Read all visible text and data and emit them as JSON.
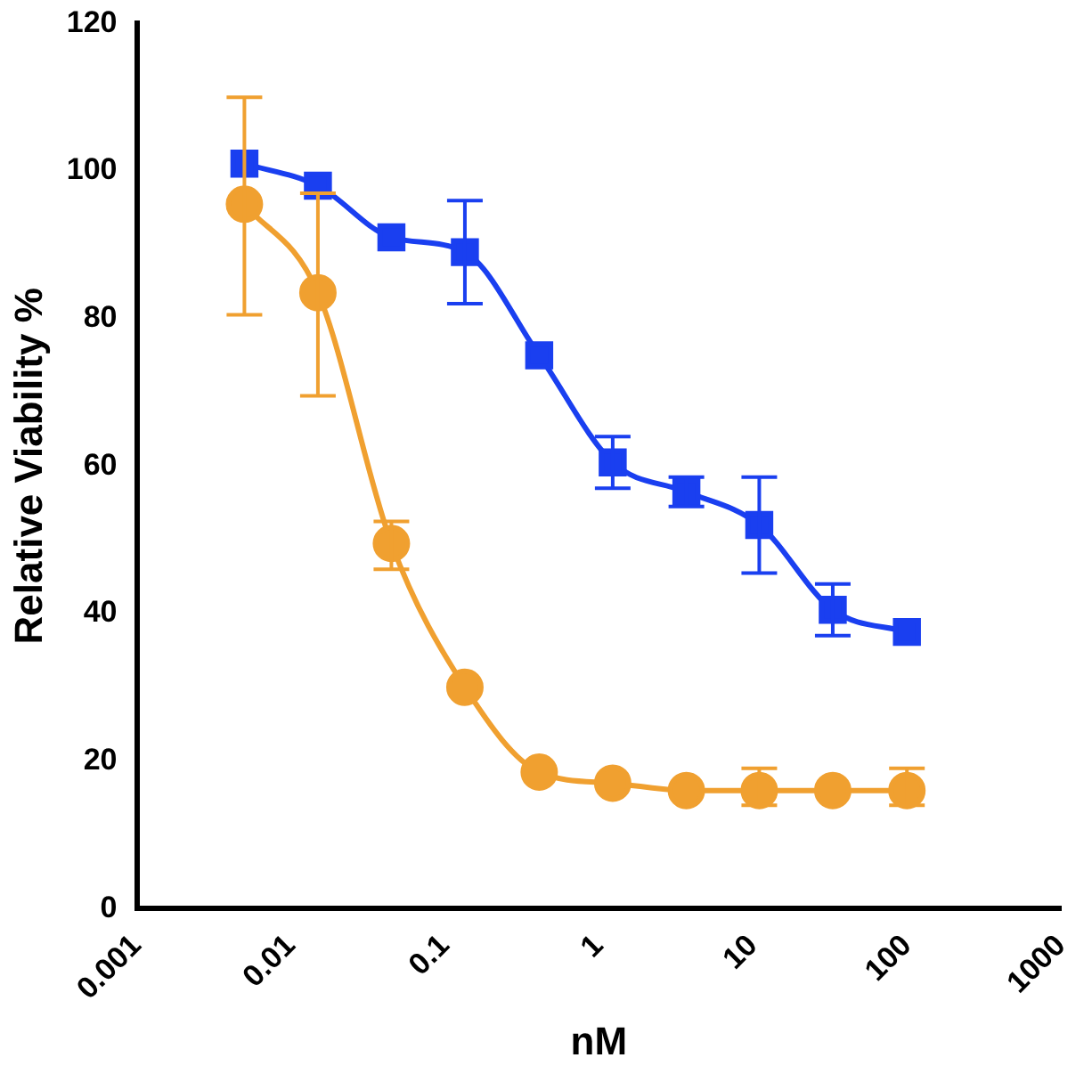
{
  "chart_data": {
    "type": "line",
    "xlabel": "nM",
    "ylabel": "Relative Viability %",
    "log": "x",
    "grid": false,
    "legend": false,
    "line_style": "solid",
    "x": [
      0.005,
      0.015,
      0.045,
      0.135,
      0.41,
      1.23,
      3.7,
      11,
      33,
      100
    ],
    "xlim": [
      0.001,
      1000
    ],
    "xticks": [
      0.001,
      0.01,
      0.1,
      1,
      10,
      100,
      1000
    ],
    "ylim": [
      0,
      120
    ],
    "yticks": [
      0,
      20,
      40,
      60,
      80,
      100,
      120
    ],
    "series": [
      {
        "color": "#1a3ff0",
        "marker": "square",
        "values": [
          101,
          98,
          91,
          89,
          75,
          60.5,
          56.5,
          52,
          40.5,
          37.5
        ],
        "errors": [
          null,
          null,
          null,
          [
            82,
            96
          ],
          null,
          [
            57,
            64
          ],
          [
            54.5,
            58.5
          ],
          [
            45.5,
            58.5
          ],
          [
            37,
            44
          ],
          null
        ]
      },
      {
        "color": "#f0a030",
        "marker": "circle",
        "values": [
          95.5,
          83.5,
          49.5,
          30,
          18.5,
          17,
          16,
          16,
          16,
          16
        ],
        "errors": [
          [
            80.5,
            110
          ],
          [
            69.5,
            97
          ],
          [
            46,
            52.5
          ],
          null,
          null,
          null,
          null,
          [
            14,
            19
          ],
          null,
          [
            14,
            19
          ]
        ]
      }
    ]
  }
}
